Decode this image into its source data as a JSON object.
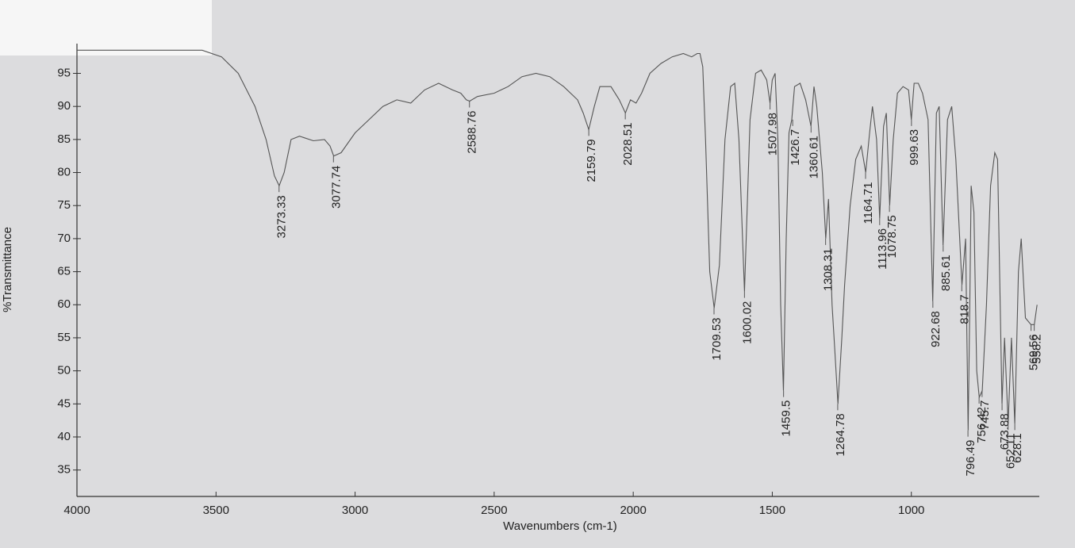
{
  "chart_data": {
    "type": "line",
    "x_label": "Wavenumbers (cm-1)",
    "y_label": "%Transmittance",
    "xlim": [
      4000,
      540
    ],
    "ylim": [
      31,
      99.5
    ],
    "xticks": [
      4000,
      3500,
      3000,
      2500,
      2000,
      1500,
      1000
    ],
    "yticks": [
      35,
      40,
      45,
      50,
      55,
      60,
      65,
      70,
      75,
      80,
      85,
      90,
      95
    ],
    "x": [
      4000,
      3700,
      3550,
      3480,
      3420,
      3360,
      3320,
      3290,
      3273,
      3255,
      3230,
      3200,
      3150,
      3110,
      3090,
      3077,
      3050,
      3000,
      2950,
      2900,
      2850,
      2800,
      2750,
      2700,
      2650,
      2620,
      2600,
      2588,
      2560,
      2500,
      2450,
      2400,
      2350,
      2300,
      2250,
      2200,
      2180,
      2160,
      2140,
      2120,
      2080,
      2050,
      2028,
      2010,
      1990,
      1970,
      1940,
      1900,
      1860,
      1820,
      1790,
      1770,
      1760,
      1750,
      1740,
      1725,
      1709,
      1690,
      1670,
      1650,
      1635,
      1620,
      1600,
      1590,
      1580,
      1560,
      1540,
      1520,
      1508,
      1500,
      1490,
      1480,
      1470,
      1460,
      1450,
      1440,
      1430,
      1420,
      1400,
      1380,
      1361,
      1350,
      1340,
      1320,
      1308,
      1298,
      1285,
      1275,
      1264,
      1250,
      1240,
      1220,
      1200,
      1180,
      1164,
      1150,
      1140,
      1125,
      1114,
      1100,
      1090,
      1078,
      1065,
      1050,
      1030,
      1010,
      1000,
      990,
      975,
      960,
      940,
      923,
      910,
      900,
      886,
      870,
      855,
      840,
      818,
      805,
      796,
      790,
      785,
      775,
      765,
      756,
      745,
      730,
      715,
      700,
      690,
      674,
      665,
      652,
      640,
      628,
      615,
      605,
      590,
      570,
      558,
      548
    ],
    "series": [
      {
        "color": "#555555",
        "values": [
          98.5,
          98.5,
          98.5,
          97.5,
          95,
          90,
          85,
          79.5,
          78,
          80,
          85,
          85.5,
          84.8,
          85,
          84,
          82.5,
          83,
          86,
          88,
          90,
          91,
          90.5,
          92.5,
          93.5,
          92.5,
          92,
          91,
          90.8,
          91.5,
          92,
          93,
          94.5,
          95,
          94.5,
          93,
          91,
          89,
          86.5,
          90,
          93,
          93,
          91,
          89,
          91,
          90.5,
          92,
          95,
          96.5,
          97.5,
          98,
          97.5,
          98,
          98,
          96,
          85,
          65,
          59.5,
          66,
          85,
          93,
          93.5,
          85,
          62,
          75,
          88,
          95,
          95.5,
          94,
          90.5,
          94,
          95,
          85,
          60,
          47,
          70,
          86,
          88,
          93,
          93.5,
          91,
          87,
          93,
          90,
          80,
          70,
          76,
          60,
          53,
          45,
          55,
          63,
          75,
          82,
          84,
          80,
          86,
          90,
          85,
          73,
          87,
          89,
          75,
          85,
          92,
          93,
          92.5,
          88,
          93.5,
          93.5,
          92,
          88,
          60.5,
          89,
          90,
          69,
          88,
          90,
          82,
          63,
          70,
          41,
          60,
          78,
          74,
          50,
          46,
          47,
          60,
          78,
          83,
          82,
          45,
          55,
          42,
          55,
          42,
          65,
          70,
          58,
          57,
          57,
          60
        ]
      }
    ],
    "peak_labels": [
      {
        "x": 3273.33,
        "y": 78
      },
      {
        "x": 3077.74,
        "y": 82.5
      },
      {
        "x": 2588.76,
        "y": 90.8
      },
      {
        "x": 2159.79,
        "y": 86.5
      },
      {
        "x": 2028.51,
        "y": 89
      },
      {
        "x": 1709.53,
        "y": 59.5
      },
      {
        "x": 1600.02,
        "y": 62
      },
      {
        "x": 1507.98,
        "y": 90.5
      },
      {
        "x": 1459.5,
        "y": 47
      },
      {
        "x": 1426.7,
        "y": 88
      },
      {
        "x": 1360.61,
        "y": 87
      },
      {
        "x": 1308.31,
        "y": 70
      },
      {
        "x": 1264.78,
        "y": 45
      },
      {
        "x": 1164.71,
        "y": 80
      },
      {
        "x": 1113.96,
        "y": 73
      },
      {
        "x": 1078.75,
        "y": 75
      },
      {
        "x": 999.63,
        "y": 88
      },
      {
        "x": 922.68,
        "y": 60.5
      },
      {
        "x": 885.61,
        "y": 69
      },
      {
        "x": 818.7,
        "y": 63
      },
      {
        "x": 796.49,
        "y": 41
      },
      {
        "x": 756.42,
        "y": 46
      },
      {
        "x": 745.7,
        "y": 47
      },
      {
        "x": 673.88,
        "y": 45
      },
      {
        "x": 652.11,
        "y": 42
      },
      {
        "x": 628.1,
        "y": 42
      },
      {
        "x": 569.56,
        "y": 57
      },
      {
        "x": 558.2,
        "y": 57
      }
    ]
  }
}
